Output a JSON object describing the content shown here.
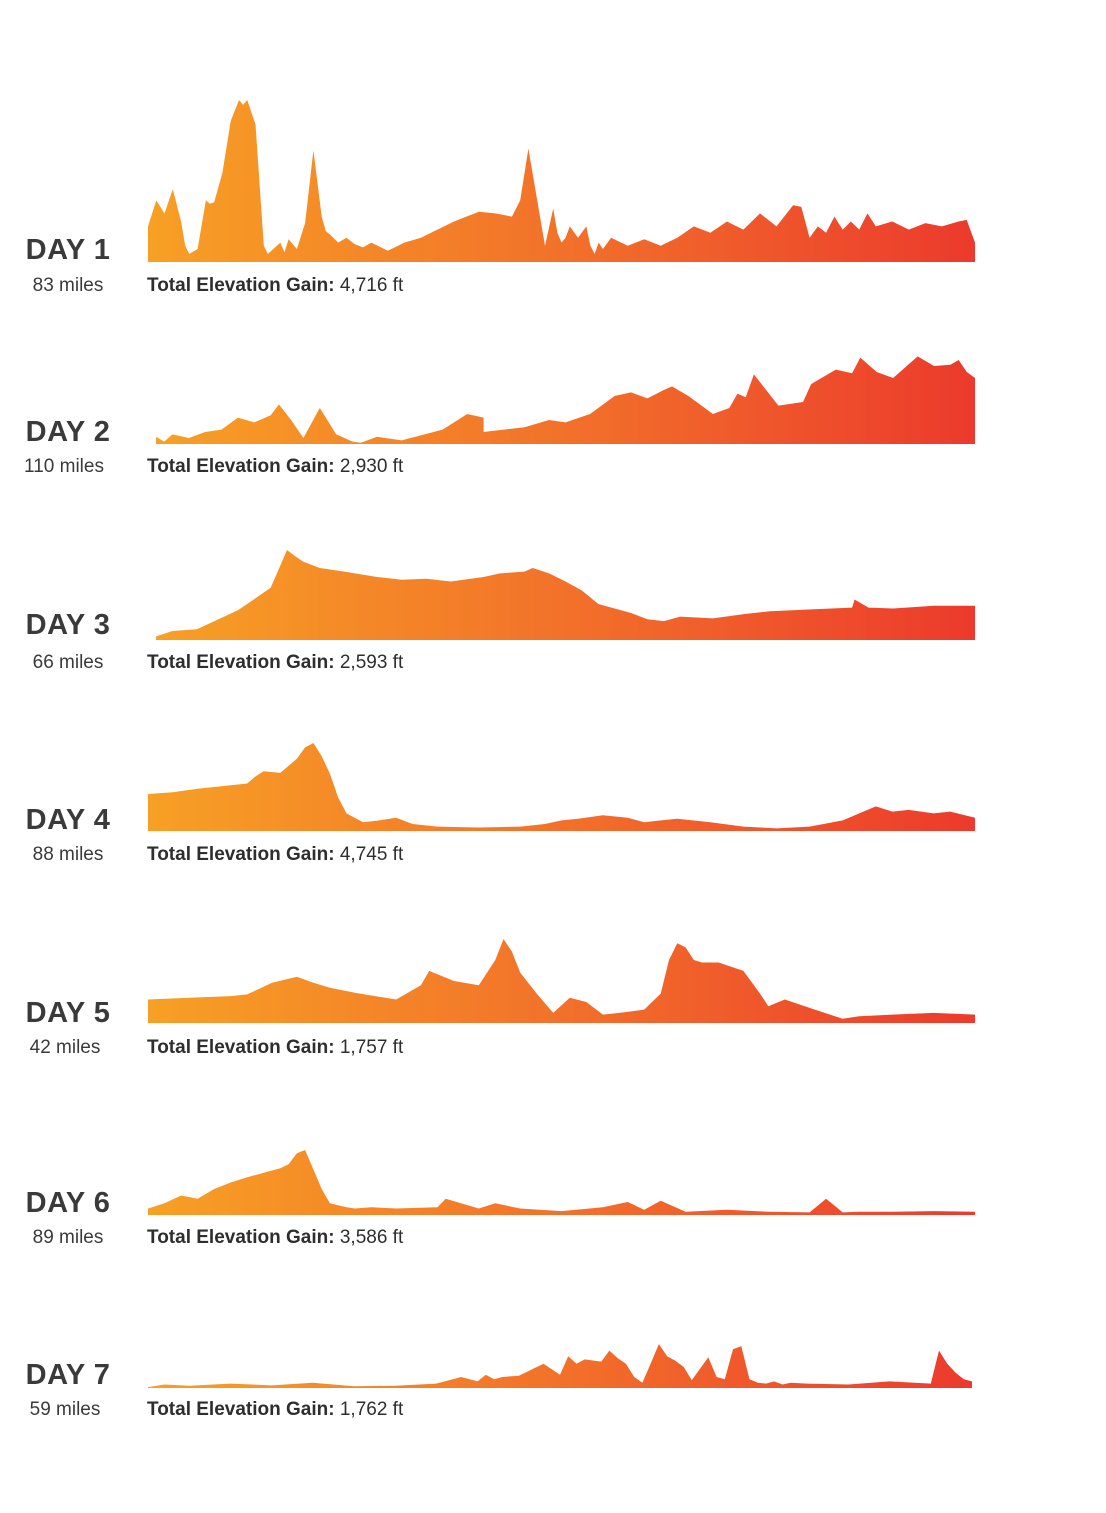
{
  "gain_label": "Total Elevation Gain:",
  "colors": {
    "gradient_start": "#f7a025",
    "gradient_mid": "#f2712a",
    "gradient_end": "#ec3a2c",
    "text": "#3a3a3a"
  },
  "chart_data": {
    "type": "area",
    "title": "",
    "xlabel": "",
    "ylabel": "",
    "grid": false,
    "note_values": "relative elevation profile, 0-1 scale (no axis printed)",
    "series": [
      {
        "name": "DAY 1",
        "label": "DAY 1",
        "distance": "83 miles",
        "gain": "4,716 ft",
        "x": [
          0,
          0.01,
          0.02,
          0.03,
          0.04,
          0.045,
          0.05,
          0.06,
          0.07,
          0.075,
          0.08,
          0.09,
          0.1,
          0.11,
          0.115,
          0.12,
          0.13,
          0.14,
          0.145,
          0.16,
          0.165,
          0.17,
          0.18,
          0.19,
          0.2,
          0.21,
          0.215,
          0.22,
          0.23,
          0.24,
          0.25,
          0.26,
          0.27,
          0.29,
          0.31,
          0.33,
          0.35,
          0.37,
          0.4,
          0.42,
          0.44,
          0.45,
          0.46,
          0.47,
          0.48,
          0.49,
          0.495,
          0.5,
          0.505,
          0.51,
          0.52,
          0.53,
          0.535,
          0.54,
          0.545,
          0.55,
          0.56,
          0.58,
          0.6,
          0.62,
          0.64,
          0.66,
          0.68,
          0.7,
          0.72,
          0.74,
          0.76,
          0.78,
          0.79,
          0.8,
          0.81,
          0.82,
          0.83,
          0.84,
          0.85,
          0.86,
          0.87,
          0.88,
          0.9,
          0.92,
          0.94,
          0.96,
          0.98,
          0.99,
          1.0
        ],
        "y": [
          0.22,
          0.38,
          0.3,
          0.45,
          0.25,
          0.1,
          0.05,
          0.08,
          0.38,
          0.36,
          0.37,
          0.55,
          0.87,
          1.0,
          0.97,
          1.0,
          0.85,
          0.1,
          0.05,
          0.12,
          0.06,
          0.14,
          0.08,
          0.24,
          0.69,
          0.28,
          0.19,
          0.17,
          0.12,
          0.15,
          0.11,
          0.09,
          0.12,
          0.07,
          0.12,
          0.15,
          0.2,
          0.25,
          0.31,
          0.3,
          0.28,
          0.38,
          0.7,
          0.4,
          0.1,
          0.33,
          0.18,
          0.12,
          0.15,
          0.22,
          0.15,
          0.22,
          0.1,
          0.05,
          0.12,
          0.08,
          0.15,
          0.1,
          0.14,
          0.1,
          0.15,
          0.22,
          0.18,
          0.25,
          0.2,
          0.3,
          0.22,
          0.35,
          0.34,
          0.15,
          0.22,
          0.18,
          0.28,
          0.2,
          0.25,
          0.2,
          0.3,
          0.22,
          0.25,
          0.2,
          0.24,
          0.22,
          0.25,
          0.26,
          0.12
        ]
      },
      {
        "name": "DAY 2",
        "label": "DAY 2",
        "distance": "110 miles",
        "gain": "2,930 ft",
        "x": [
          0,
          0.01,
          0.02,
          0.04,
          0.06,
          0.08,
          0.1,
          0.12,
          0.14,
          0.15,
          0.165,
          0.18,
          0.2,
          0.22,
          0.24,
          0.25,
          0.27,
          0.3,
          0.35,
          0.38,
          0.4,
          0.4,
          0.45,
          0.48,
          0.5,
          0.53,
          0.56,
          0.58,
          0.6,
          0.62,
          0.63,
          0.65,
          0.68,
          0.7,
          0.71,
          0.72,
          0.73,
          0.76,
          0.79,
          0.8,
          0.83,
          0.85,
          0.86,
          0.88,
          0.9,
          0.93,
          0.95,
          0.97,
          0.98,
          0.99,
          1.0
        ],
        "y": [
          0.06,
          0.02,
          0.08,
          0.05,
          0.1,
          0.12,
          0.22,
          0.18,
          0.24,
          0.33,
          0.2,
          0.05,
          0.3,
          0.08,
          0.02,
          0.01,
          0.06,
          0.03,
          0.12,
          0.25,
          0.22,
          0.1,
          0.14,
          0.2,
          0.18,
          0.25,
          0.4,
          0.43,
          0.38,
          0.45,
          0.48,
          0.4,
          0.25,
          0.3,
          0.42,
          0.39,
          0.58,
          0.32,
          0.35,
          0.5,
          0.62,
          0.59,
          0.72,
          0.6,
          0.55,
          0.73,
          0.65,
          0.66,
          0.7,
          0.6,
          0.55
        ]
      },
      {
        "name": "DAY 3",
        "label": "DAY 3",
        "distance": "66 miles",
        "gain": "2,593 ft",
        "x": [
          0,
          0.02,
          0.05,
          0.1,
          0.14,
          0.16,
          0.17,
          0.18,
          0.2,
          0.23,
          0.27,
          0.3,
          0.33,
          0.36,
          0.4,
          0.42,
          0.45,
          0.46,
          0.48,
          0.5,
          0.52,
          0.54,
          0.58,
          0.6,
          0.62,
          0.64,
          0.68,
          0.72,
          0.75,
          0.8,
          0.85,
          0.853,
          0.87,
          0.9,
          0.95,
          1.0
        ],
        "y": [
          0.04,
          0.1,
          0.12,
          0.33,
          0.58,
          1.0,
          0.93,
          0.87,
          0.8,
          0.76,
          0.7,
          0.67,
          0.68,
          0.65,
          0.7,
          0.74,
          0.76,
          0.8,
          0.74,
          0.65,
          0.55,
          0.4,
          0.3,
          0.23,
          0.21,
          0.26,
          0.24,
          0.29,
          0.32,
          0.34,
          0.36,
          0.45,
          0.36,
          0.35,
          0.38,
          0.38
        ]
      },
      {
        "name": "DAY 4",
        "label": "DAY 4",
        "distance": "88 miles",
        "gain": "4,745 ft",
        "x": [
          0,
          0.03,
          0.06,
          0.1,
          0.12,
          0.13,
          0.14,
          0.16,
          0.18,
          0.19,
          0.2,
          0.21,
          0.22,
          0.23,
          0.24,
          0.26,
          0.28,
          0.3,
          0.32,
          0.35,
          0.4,
          0.45,
          0.48,
          0.5,
          0.52,
          0.55,
          0.58,
          0.6,
          0.62,
          0.64,
          0.68,
          0.72,
          0.76,
          0.8,
          0.84,
          0.88,
          0.9,
          0.92,
          0.95,
          0.97,
          1.0
        ],
        "y": [
          0.42,
          0.44,
          0.48,
          0.52,
          0.54,
          0.62,
          0.68,
          0.66,
          0.82,
          0.95,
          1.0,
          0.85,
          0.65,
          0.38,
          0.2,
          0.1,
          0.12,
          0.15,
          0.08,
          0.05,
          0.04,
          0.05,
          0.08,
          0.12,
          0.14,
          0.18,
          0.15,
          0.1,
          0.12,
          0.14,
          0.1,
          0.05,
          0.03,
          0.05,
          0.12,
          0.28,
          0.22,
          0.24,
          0.2,
          0.22,
          0.15
        ]
      },
      {
        "name": "DAY 5",
        "label": "DAY 5",
        "distance": "42 miles",
        "gain": "1,757 ft",
        "x": [
          0,
          0.05,
          0.1,
          0.12,
          0.15,
          0.18,
          0.2,
          0.22,
          0.25,
          0.3,
          0.33,
          0.34,
          0.35,
          0.37,
          0.4,
          0.42,
          0.43,
          0.44,
          0.45,
          0.47,
          0.49,
          0.51,
          0.53,
          0.55,
          0.57,
          0.6,
          0.62,
          0.63,
          0.64,
          0.65,
          0.66,
          0.67,
          0.69,
          0.72,
          0.74,
          0.75,
          0.77,
          0.8,
          0.84,
          0.86,
          0.9,
          0.95,
          1.0
        ],
        "y": [
          0.28,
          0.3,
          0.32,
          0.34,
          0.48,
          0.55,
          0.48,
          0.42,
          0.36,
          0.28,
          0.45,
          0.62,
          0.58,
          0.5,
          0.45,
          0.75,
          1.0,
          0.85,
          0.6,
          0.35,
          0.12,
          0.3,
          0.25,
          0.1,
          0.12,
          0.16,
          0.35,
          0.75,
          0.95,
          0.9,
          0.75,
          0.72,
          0.72,
          0.62,
          0.35,
          0.2,
          0.28,
          0.18,
          0.05,
          0.08,
          0.1,
          0.12,
          0.1
        ]
      },
      {
        "name": "DAY 6",
        "label": "DAY 6",
        "distance": "89 miles",
        "gain": "3,586 ft",
        "x": [
          0,
          0.02,
          0.04,
          0.06,
          0.08,
          0.1,
          0.12,
          0.14,
          0.16,
          0.17,
          0.18,
          0.19,
          0.2,
          0.21,
          0.22,
          0.24,
          0.25,
          0.27,
          0.3,
          0.35,
          0.36,
          0.4,
          0.42,
          0.45,
          0.5,
          0.55,
          0.58,
          0.6,
          0.62,
          0.65,
          0.7,
          0.75,
          0.8,
          0.82,
          0.84,
          0.86,
          0.9,
          0.95,
          1.0
        ],
        "y": [
          0.1,
          0.18,
          0.3,
          0.25,
          0.4,
          0.5,
          0.58,
          0.65,
          0.72,
          0.78,
          0.95,
          1.0,
          0.7,
          0.4,
          0.18,
          0.12,
          0.1,
          0.12,
          0.1,
          0.12,
          0.25,
          0.1,
          0.18,
          0.1,
          0.06,
          0.12,
          0.2,
          0.08,
          0.22,
          0.05,
          0.08,
          0.05,
          0.04,
          0.25,
          0.04,
          0.05,
          0.05,
          0.06,
          0.05
        ]
      },
      {
        "name": "DAY 7",
        "label": "DAY 7",
        "distance": "59 miles",
        "gain": "1,762 ft",
        "x": [
          0,
          0.02,
          0.05,
          0.1,
          0.15,
          0.2,
          0.25,
          0.3,
          0.35,
          0.38,
          0.4,
          0.41,
          0.42,
          0.43,
          0.45,
          0.48,
          0.5,
          0.51,
          0.52,
          0.53,
          0.55,
          0.56,
          0.57,
          0.58,
          0.59,
          0.6,
          0.61,
          0.62,
          0.63,
          0.64,
          0.65,
          0.66,
          0.68,
          0.69,
          0.7,
          0.71,
          0.72,
          0.73,
          0.74,
          0.75,
          0.76,
          0.77,
          0.78,
          0.8,
          0.85,
          0.9,
          0.95,
          0.96,
          0.97,
          0.98,
          0.99,
          1.0
        ],
        "y": [
          0.02,
          0.08,
          0.05,
          0.1,
          0.06,
          0.12,
          0.04,
          0.05,
          0.1,
          0.25,
          0.15,
          0.3,
          0.2,
          0.25,
          0.28,
          0.55,
          0.3,
          0.72,
          0.55,
          0.65,
          0.6,
          0.85,
          0.68,
          0.55,
          0.25,
          0.12,
          0.55,
          1.0,
          0.72,
          0.62,
          0.48,
          0.18,
          0.7,
          0.25,
          0.2,
          0.88,
          0.95,
          0.2,
          0.12,
          0.1,
          0.15,
          0.08,
          0.12,
          0.1,
          0.08,
          0.15,
          0.1,
          0.85,
          0.55,
          0.35,
          0.2,
          0.15
        ]
      }
    ]
  }
}
